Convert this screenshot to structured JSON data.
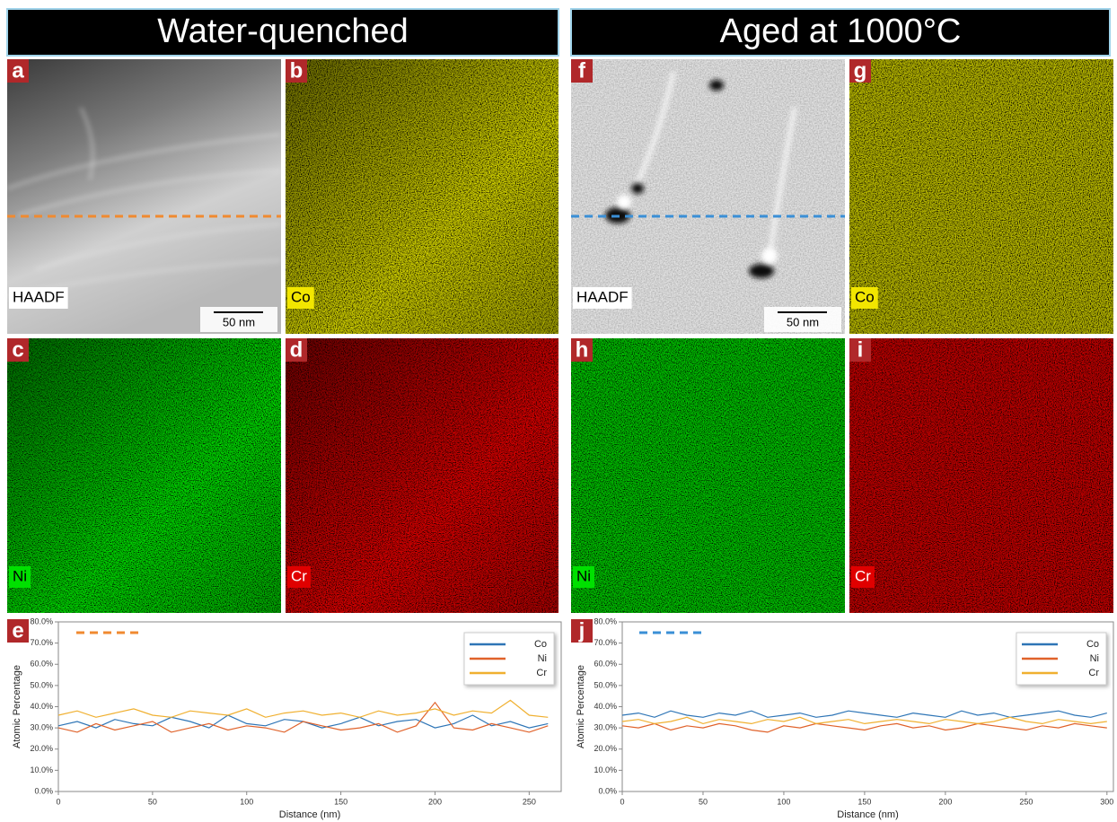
{
  "figure": {
    "headers": [
      "Water-quenched",
      "Aged at 1000°C"
    ],
    "panels": [
      {
        "letter": "a",
        "label": "HAADF",
        "scale_bar": "50 nm"
      },
      {
        "letter": "b",
        "label": "Co"
      },
      {
        "letter": "c",
        "label": "Ni"
      },
      {
        "letter": "d",
        "label": "Cr"
      },
      {
        "letter": "f",
        "label": "HAADF",
        "scale_bar": "50 nm"
      },
      {
        "letter": "g",
        "label": "Co"
      },
      {
        "letter": "h",
        "label": "Ni"
      },
      {
        "letter": "i",
        "label": "Cr"
      }
    ]
  },
  "chart_data": [
    {
      "type": "line",
      "panel_label": "e",
      "xlabel": "Distance (nm)",
      "ylabel": "Atomic Percentage",
      "x": [
        0,
        10,
        20,
        30,
        40,
        50,
        60,
        70,
        80,
        90,
        100,
        110,
        120,
        130,
        140,
        150,
        160,
        170,
        180,
        190,
        200,
        210,
        220,
        230,
        240,
        250,
        260
      ],
      "series": [
        {
          "name": "Co",
          "color": "#2e75b6",
          "values": [
            31,
            33,
            30,
            34,
            32,
            31,
            35,
            33,
            30,
            36,
            32,
            31,
            34,
            33,
            30,
            32,
            35,
            31,
            33,
            34,
            30,
            32,
            36,
            31,
            33,
            30,
            32
          ]
        },
        {
          "name": "Ni",
          "color": "#e0622a",
          "values": [
            30,
            28,
            32,
            29,
            31,
            33,
            28,
            30,
            32,
            29,
            31,
            30,
            28,
            33,
            31,
            29,
            30,
            32,
            28,
            31,
            42,
            30,
            29,
            32,
            30,
            28,
            31
          ]
        },
        {
          "name": "Cr",
          "color": "#f0b030",
          "values": [
            36,
            38,
            35,
            37,
            39,
            36,
            35,
            38,
            37,
            36,
            39,
            35,
            37,
            38,
            36,
            37,
            35,
            38,
            36,
            37,
            39,
            36,
            38,
            37,
            43,
            36,
            35
          ]
        }
      ],
      "xlim": [
        0,
        267
      ],
      "xticks": [
        0,
        50,
        100,
        150,
        200,
        250
      ],
      "ylim": [
        0,
        80
      ],
      "yticks": [
        {
          "value": 0,
          "label": "0.0%"
        },
        {
          "value": 10,
          "label": "10.0%"
        },
        {
          "value": 20,
          "label": "20.0%"
        },
        {
          "value": 30,
          "label": "30.0%"
        },
        {
          "value": 40,
          "label": "40.0%"
        },
        {
          "value": 50,
          "label": "50.0%"
        },
        {
          "value": 60,
          "label": "60.0%"
        },
        {
          "value": 70,
          "label": "70.0%"
        },
        {
          "value": 80,
          "label": "80.0%"
        }
      ],
      "legend": "upper right",
      "grid": false
    },
    {
      "type": "line",
      "panel_label": "j",
      "xlabel": "Distance (nm)",
      "ylabel": "Atomic Percentage",
      "x": [
        0,
        10,
        20,
        30,
        40,
        50,
        60,
        70,
        80,
        90,
        100,
        110,
        120,
        130,
        140,
        150,
        160,
        170,
        180,
        190,
        200,
        210,
        220,
        230,
        240,
        250,
        260,
        270,
        280,
        290,
        300
      ],
      "series": [
        {
          "name": "Co",
          "color": "#2e75b6",
          "values": [
            36,
            37,
            35,
            38,
            36,
            35,
            37,
            36,
            38,
            35,
            36,
            37,
            35,
            36,
            38,
            37,
            36,
            35,
            37,
            36,
            35,
            38,
            36,
            37,
            35,
            36,
            37,
            38,
            36,
            35,
            37
          ]
        },
        {
          "name": "Ni",
          "color": "#e0622a",
          "values": [
            31,
            30,
            32,
            29,
            31,
            30,
            32,
            31,
            29,
            28,
            31,
            30,
            32,
            31,
            30,
            29,
            31,
            32,
            30,
            31,
            29,
            30,
            32,
            31,
            30,
            29,
            31,
            30,
            32,
            31,
            30
          ]
        },
        {
          "name": "Cr",
          "color": "#f0b030",
          "values": [
            33,
            34,
            32,
            33,
            35,
            32,
            34,
            33,
            32,
            34,
            33,
            35,
            32,
            33,
            34,
            32,
            33,
            34,
            33,
            32,
            34,
            33,
            32,
            33,
            35,
            33,
            32,
            34,
            33,
            32,
            33
          ]
        }
      ],
      "xlim": [
        0,
        304
      ],
      "xticks": [
        0,
        50,
        100,
        150,
        200,
        250,
        300
      ],
      "ylim": [
        0,
        80
      ],
      "yticks": [
        {
          "value": 0,
          "label": "0.0%"
        },
        {
          "value": 10,
          "label": "10.0%"
        },
        {
          "value": 20,
          "label": "20.0%"
        },
        {
          "value": 30,
          "label": "30.0%"
        },
        {
          "value": 40,
          "label": "40.0%"
        },
        {
          "value": 50,
          "label": "50.0%"
        },
        {
          "value": 60,
          "label": "60.0%"
        },
        {
          "value": 70,
          "label": "70.0%"
        },
        {
          "value": 80,
          "label": "80.0%"
        }
      ],
      "legend": "upper right",
      "grid": false
    }
  ]
}
